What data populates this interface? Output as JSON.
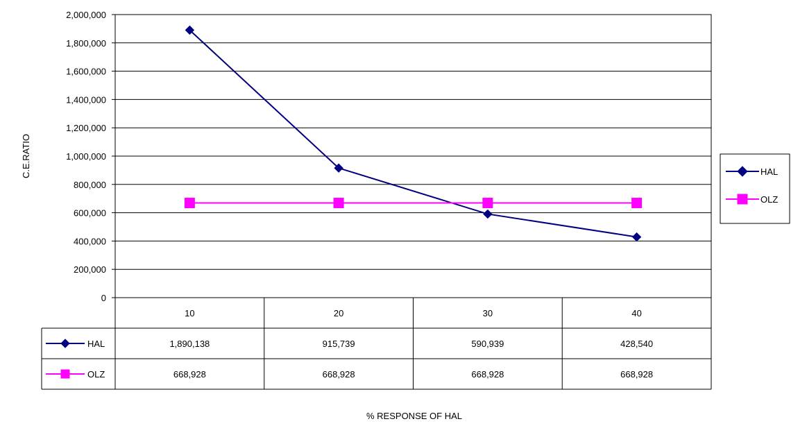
{
  "chart_data": {
    "type": "line",
    "xlabel": "% RESPONSE OF HAL",
    "ylabel": "C.E.RATIO",
    "categories": [
      "10",
      "20",
      "30",
      "40"
    ],
    "ylim": [
      0,
      2000000
    ],
    "y_ticks": [
      0,
      200000,
      400000,
      600000,
      800000,
      1000000,
      1200000,
      1400000,
      1600000,
      1800000,
      2000000
    ],
    "grid": true,
    "legend_position": "right",
    "data_table": true,
    "series": [
      {
        "name": "HAL",
        "values": [
          1890138,
          915739,
          590939,
          428540
        ],
        "display": [
          "1,890,138",
          "915,739",
          "590,939",
          "428,540"
        ],
        "color": "#000080",
        "marker": "diamond"
      },
      {
        "name": "OLZ",
        "values": [
          668928,
          668928,
          668928,
          668928
        ],
        "display": [
          "668,928",
          "668,928",
          "668,928",
          "668,928"
        ],
        "color": "#ff00ff",
        "marker": "square"
      }
    ]
  }
}
